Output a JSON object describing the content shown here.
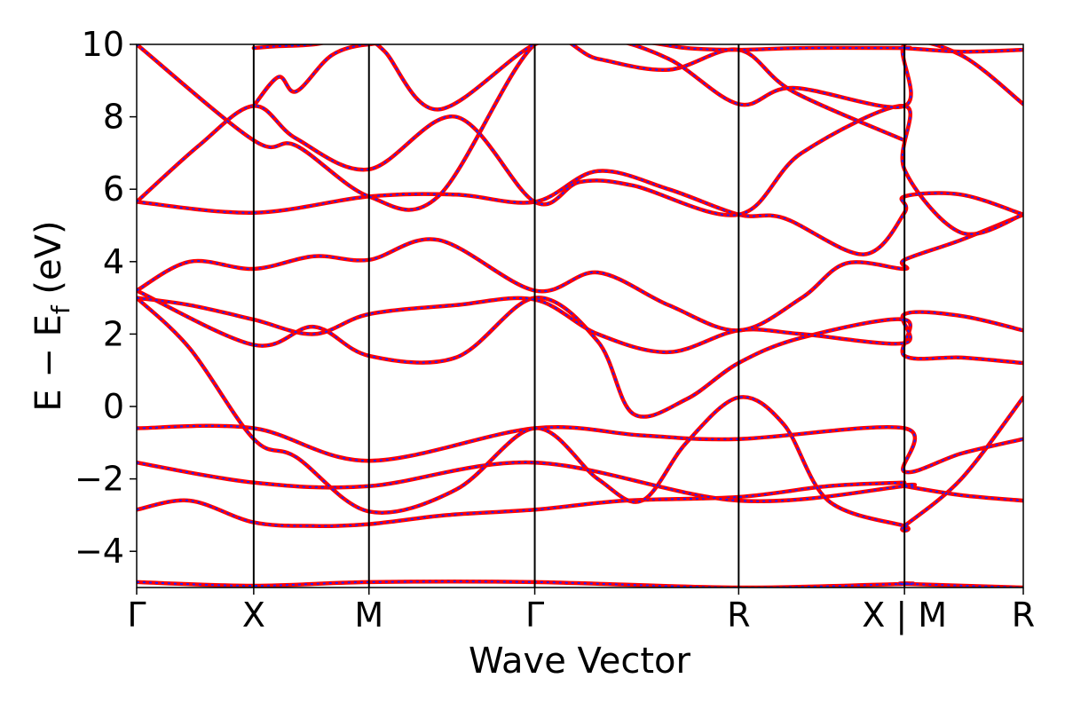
{
  "chart_data": {
    "type": "line",
    "title": "",
    "xlabel": "Wave Vector",
    "ylabel": {
      "main": "E − E",
      "sub": "f",
      "unit": " (eV)"
    },
    "ylim": [
      -5,
      10
    ],
    "yticks": [
      -4,
      -2,
      0,
      2,
      4,
      6,
      8,
      10
    ],
    "xlim": [
      0,
      1
    ],
    "kpoint_labels": [
      {
        "label": "Γ",
        "x": 0.0
      },
      {
        "label": "X",
        "x": 0.132
      },
      {
        "label": "M",
        "x": 0.262
      },
      {
        "label": "Γ",
        "x": 0.449
      },
      {
        "label": "R",
        "x": 0.679
      },
      {
        "label": "X | M",
        "x": 0.866
      },
      {
        "label": "R",
        "x": 1.0
      }
    ],
    "grid": false,
    "legend": "none",
    "colors": {
      "line": "#ff0000",
      "dash": "#1f1fff",
      "axis": "#000000"
    },
    "series": [
      {
        "x": [
          0.0,
          0.132,
          0.262,
          0.449,
          0.679,
          0.866,
          0.866,
          1.0
        ],
        "values": [
          -4.85,
          -4.95,
          -4.85,
          -4.85,
          -5.0,
          -4.9,
          -4.9,
          -5.0
        ]
      },
      {
        "x": [
          0.0,
          0.06,
          0.132,
          0.2,
          0.262,
          0.35,
          0.449,
          0.55,
          0.679,
          0.78,
          0.866
        ],
        "values": [
          -2.85,
          -2.6,
          -3.2,
          -3.3,
          -3.25,
          -3.0,
          -2.85,
          -2.6,
          -2.5,
          -2.2,
          -2.1
        ]
      },
      {
        "x": [
          0.0,
          0.132,
          0.262,
          0.449,
          0.679,
          0.866,
          0.866,
          0.93,
          1.0
        ],
        "values": [
          -1.55,
          -2.1,
          -2.2,
          -1.55,
          -2.6,
          -2.2,
          -2.2,
          -2.45,
          -2.6
        ]
      },
      {
        "x": [
          0.0,
          0.132,
          0.262,
          0.449,
          0.57,
          0.679,
          0.866,
          0.866,
          0.93,
          1.0
        ],
        "values": [
          -0.6,
          -0.6,
          -1.5,
          -0.6,
          -0.8,
          -0.9,
          -0.6,
          -1.8,
          -1.3,
          -0.9
        ]
      },
      {
        "x": [
          0.0,
          0.06,
          0.132,
          0.18,
          0.262,
          0.36,
          0.449,
          0.52,
          0.57,
          0.62,
          0.679,
          0.73,
          0.78,
          0.866,
          0.866,
          0.93,
          1.0
        ],
        "values": [
          3.0,
          1.6,
          -0.9,
          -1.4,
          -2.9,
          -2.3,
          -0.6,
          -2.0,
          -2.6,
          -1.0,
          0.25,
          -0.5,
          -2.6,
          -3.3,
          -3.3,
          -2.0,
          0.25
        ]
      },
      {
        "x": [
          0.0,
          0.132,
          0.2,
          0.262,
          0.36,
          0.449,
          0.52,
          0.56,
          0.62,
          0.679,
          0.75,
          0.866,
          0.866,
          0.93,
          1.0
        ],
        "values": [
          3.2,
          1.7,
          2.2,
          1.4,
          1.35,
          3.0,
          1.8,
          -0.2,
          0.2,
          1.2,
          1.9,
          2.4,
          1.4,
          1.35,
          1.2
        ]
      },
      {
        "x": [
          0.0,
          0.06,
          0.132,
          0.2,
          0.262,
          0.36,
          0.449,
          0.52,
          0.6,
          0.679,
          0.75,
          0.866,
          0.866,
          0.93,
          1.0
        ],
        "values": [
          3.0,
          2.8,
          2.4,
          2.0,
          2.55,
          2.8,
          2.95,
          2.0,
          1.5,
          2.1,
          2.0,
          1.75,
          2.55,
          2.5,
          2.1
        ]
      },
      {
        "x": [
          0.0,
          0.06,
          0.132,
          0.2,
          0.262,
          0.34,
          0.449,
          0.52,
          0.6,
          0.679,
          0.75,
          0.8,
          0.866,
          0.866,
          0.93,
          1.0
        ],
        "values": [
          3.2,
          4.0,
          3.8,
          4.15,
          4.05,
          4.6,
          3.2,
          3.7,
          2.8,
          2.1,
          3.0,
          3.95,
          3.8,
          4.05,
          4.6,
          5.3
        ]
      },
      {
        "x": [
          0.0,
          0.132,
          0.262,
          0.36,
          0.449,
          0.52,
          0.6,
          0.679,
          0.73,
          0.82,
          0.866,
          0.866,
          0.93,
          1.0
        ],
        "values": [
          5.65,
          5.35,
          5.8,
          5.85,
          5.65,
          6.5,
          6.0,
          5.3,
          5.2,
          4.2,
          5.35,
          5.8,
          5.85,
          5.3
        ]
      },
      {
        "x": [
          0.0,
          0.07,
          0.132,
          0.18,
          0.262,
          0.36,
          0.449,
          0.5,
          0.56,
          0.679,
          0.75,
          0.866,
          0.866,
          0.93,
          1.0
        ],
        "values": [
          5.65,
          7.2,
          8.3,
          7.4,
          6.55,
          8.0,
          5.65,
          6.2,
          6.1,
          5.3,
          7.0,
          8.3,
          6.55,
          4.8,
          5.3
        ]
      },
      {
        "x": [
          0.0,
          0.132,
          0.18,
          0.262,
          0.34,
          0.449,
          0.52,
          0.6,
          0.679,
          0.74,
          0.866
        ],
        "values": [
          10.0,
          7.35,
          7.2,
          5.8,
          5.8,
          10.0,
          9.6,
          9.3,
          9.85,
          8.7,
          7.35
        ]
      },
      {
        "x": [
          0.132,
          0.16,
          0.18,
          0.22,
          0.262,
          0.28,
          0.34,
          0.449,
          0.52,
          0.6,
          0.679,
          0.74,
          0.866,
          0.866,
          0.93,
          1.0
        ],
        "values": [
          8.3,
          9.1,
          8.7,
          9.7,
          10.0,
          9.8,
          8.2,
          10.0,
          10.2,
          9.6,
          8.35,
          8.8,
          8.3,
          10.0,
          9.7,
          8.35
        ]
      },
      {
        "x": [
          0.132,
          0.16,
          0.2,
          0.262,
          0.449,
          0.56,
          0.62,
          0.679,
          0.75,
          0.866,
          0.866,
          0.93,
          1.0
        ],
        "values": [
          9.9,
          9.95,
          10.0,
          10.2,
          10.2,
          10.1,
          9.9,
          9.85,
          9.9,
          9.9,
          9.9,
          9.8,
          9.85
        ]
      }
    ]
  }
}
